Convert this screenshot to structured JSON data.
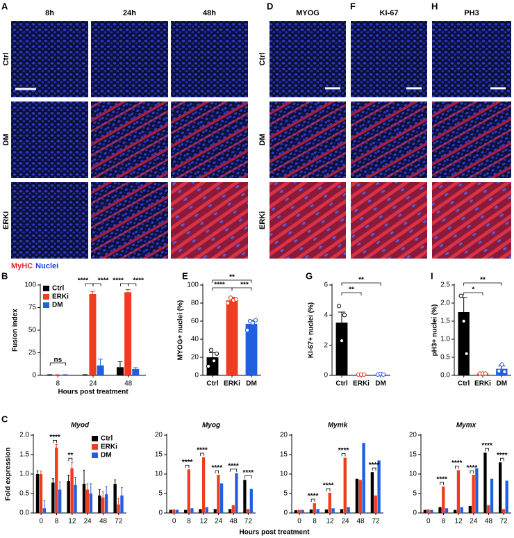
{
  "figure": {
    "letters": [
      "A",
      "B",
      "C",
      "D",
      "E",
      "F",
      "G",
      "H",
      "I"
    ],
    "panel_A": {
      "columns": [
        "8h",
        "24h",
        "48h"
      ],
      "rows": [
        "Ctrl",
        "DM",
        "ERKi"
      ],
      "stain": [
        "MyHC",
        "Nuclei"
      ]
    },
    "panel_DFH": {
      "columns": [
        "MYOG",
        "KI-67",
        "PH3"
      ],
      "rows": [
        "Ctrl",
        "DM",
        "ERKi"
      ]
    }
  },
  "chart_data": [
    {
      "type": "bar",
      "ylabel": "Fusion index",
      "xlabel": "Hours post treatment",
      "categories": [
        "8",
        "24",
        "48"
      ],
      "series": [
        {
          "name": "Ctrl",
          "color": "#000000",
          "values": [
            0.5,
            0.5,
            9
          ],
          "errors": [
            0.3,
            0.3,
            6
          ]
        },
        {
          "name": "ERKi",
          "color": "#f03c1e",
          "values": [
            0.5,
            90,
            92
          ],
          "errors": [
            0.3,
            3,
            3
          ]
        },
        {
          "name": "DM",
          "color": "#1f5fe0",
          "values": [
            0.5,
            11,
            7
          ],
          "errors": [
            0.3,
            7,
            1.5
          ]
        }
      ],
      "ylim": [
        0,
        100
      ],
      "yticks": [
        0,
        25,
        50,
        75,
        100
      ],
      "legend": "upper left",
      "annotations": [
        "ns",
        "****",
        "****",
        "****",
        "****"
      ]
    },
    {
      "type": "bar",
      "ylabel": "MYOG+ nuclei (%)",
      "categories": [
        "Ctrl",
        "ERKi",
        "DM"
      ],
      "values": [
        20,
        83,
        57
      ],
      "errors": [
        5,
        3,
        4
      ],
      "colors": [
        "#000000",
        "#f03c1e",
        "#1f5fe0"
      ],
      "points": [
        [
          10,
          28,
          16,
          24
        ],
        [
          80,
          86,
          83,
          84
        ],
        [
          50,
          60,
          58,
          61
        ]
      ],
      "ylim": [
        0,
        100
      ],
      "yticks": [
        0,
        20,
        40,
        60,
        80,
        100
      ],
      "annotations": [
        "**",
        "****",
        "***"
      ]
    },
    {
      "type": "bar",
      "ylabel": "KI-67+ nuclei (%)",
      "categories": [
        "Ctrl",
        "ERKi",
        "DM"
      ],
      "values": [
        3.5,
        0.05,
        0.05
      ],
      "errors": [
        0.7,
        0.02,
        0.03
      ],
      "colors": [
        "#000000",
        "#f03c1e",
        "#1f5fe0"
      ],
      "points": [
        [
          4.6,
          2.3,
          4.0
        ],
        [
          0.05,
          0.05,
          0.05
        ],
        [
          0.05,
          0.1,
          0.05
        ]
      ],
      "ylim": [
        0,
        6
      ],
      "yticks": [
        0,
        2,
        4,
        6
      ],
      "annotations": [
        "**",
        "**"
      ]
    },
    {
      "type": "bar",
      "ylabel": "pH3+ nuclei (%)",
      "categories": [
        "Ctrl",
        "ERKi",
        "DM"
      ],
      "values": [
        1.75,
        0.05,
        0.18
      ],
      "errors": [
        0.4,
        0.02,
        0.08
      ],
      "colors": [
        "#000000",
        "#f03c1e",
        "#1f5fe0"
      ],
      "points": [
        [
          2.2,
          1.5,
          0.6
        ],
        [
          0.05,
          0.05,
          0.05
        ],
        [
          0.12,
          0.3,
          0.1
        ]
      ],
      "ylim": [
        0,
        2.5
      ],
      "yticks": [
        {
          "value": 0,
          "label": "0.0"
        },
        0.5,
        {
          "value": 1,
          "label": "1.0"
        },
        1.5,
        {
          "value": 2,
          "label": "2.0"
        },
        2.5
      ],
      "annotations": [
        "**",
        "*"
      ]
    },
    {
      "type": "bar",
      "title": "Myod",
      "ylabel": "Fold expression",
      "xlabel": "Hours post treatment",
      "categories": [
        "0",
        "8",
        "12",
        "24",
        "48",
        "72"
      ],
      "series": [
        {
          "name": "Ctrl",
          "color": "#000000",
          "values": [
            1.0,
            0.78,
            0.82,
            0.75,
            0.45,
            0.75
          ],
          "errors": [
            0.08,
            0.1,
            0.15,
            0.35,
            0.15,
            0.1
          ]
        },
        {
          "name": "ERKi",
          "color": "#f03c1e",
          "values": [
            1.0,
            1.68,
            1.15,
            0.6,
            0.4,
            0.22
          ],
          "errors": [
            0.08,
            0.08,
            0.15,
            0.15,
            0.15,
            0.15
          ]
        },
        {
          "name": "DM",
          "color": "#1f5fe0",
          "values": [
            0.12,
            0.6,
            0.72,
            0.5,
            0.48,
            0.45
          ],
          "errors": [
            0.2,
            0.2,
            0.2,
            0.25,
            0.2,
            0.2
          ]
        }
      ],
      "ylim": [
        0,
        2
      ],
      "yticks": [
        {
          "value": 0,
          "label": "0.0"
        },
        0.5,
        {
          "value": 1,
          "label": "1.0"
        },
        1.5,
        {
          "value": 2,
          "label": "2.0"
        }
      ],
      "legend": "upper right",
      "annotations": [
        "****",
        "**"
      ]
    },
    {
      "type": "bar",
      "title": "Myog",
      "categories": [
        "0",
        "8",
        "12",
        "24",
        "48",
        "72"
      ],
      "series": [
        {
          "name": "Ctrl",
          "color": "#000000",
          "values": [
            0.8,
            0.8,
            1.0,
            1.0,
            1.0,
            8.5
          ]
        },
        {
          "name": "ERKi",
          "color": "#f03c1e",
          "values": [
            0.9,
            11.2,
            14.3,
            9.8,
            2.0,
            1.0
          ]
        },
        {
          "name": "DM",
          "color": "#1f5fe0",
          "values": [
            0.8,
            1.2,
            1.5,
            7.6,
            10.2,
            6.2
          ]
        }
      ],
      "ylim": [
        0,
        20
      ],
      "yticks": [
        0,
        5,
        10,
        15,
        20
      ],
      "annotations": [
        "****",
        "****",
        "****",
        "****",
        "****"
      ]
    },
    {
      "type": "bar",
      "title": "Mymk",
      "categories": [
        "0",
        "8",
        "12",
        "24",
        "48",
        "72"
      ],
      "series": [
        {
          "name": "Ctrl",
          "color": "#000000",
          "values": [
            0.7,
            0.9,
            0.9,
            1.0,
            8.8,
            10.5
          ]
        },
        {
          "name": "ERKi",
          "color": "#f03c1e",
          "values": [
            0.8,
            2.5,
            5.2,
            14.2,
            8.5,
            4.5
          ]
        },
        {
          "name": "DM",
          "color": "#1f5fe0",
          "values": [
            0.8,
            1.0,
            1.2,
            1.5,
            18.0,
            13.5
          ]
        }
      ],
      "ylim": [
        0,
        20
      ],
      "yticks": [
        0,
        5,
        10,
        15,
        20
      ],
      "annotations": [
        "****",
        "****",
        "****",
        "****"
      ]
    },
    {
      "type": "bar",
      "title": "Mymx",
      "categories": [
        "0",
        "8",
        "12",
        "24",
        "48",
        "72"
      ],
      "series": [
        {
          "name": "Ctrl",
          "color": "#000000",
          "values": [
            0.8,
            1.5,
            0.8,
            1.8,
            15.5,
            13.0
          ]
        },
        {
          "name": "ERKi",
          "color": "#f03c1e",
          "values": [
            0.9,
            6.8,
            11.0,
            9.8,
            2.0,
            1.0
          ]
        },
        {
          "name": "DM",
          "color": "#1f5fe0",
          "values": [
            0.8,
            1.2,
            1.5,
            11.5,
            8.8,
            8.3
          ]
        }
      ],
      "ylim": [
        0,
        20
      ],
      "yticks": [
        0,
        5,
        10,
        15,
        20
      ],
      "annotations": [
        "****",
        "****",
        "****",
        "****",
        "****"
      ]
    }
  ]
}
